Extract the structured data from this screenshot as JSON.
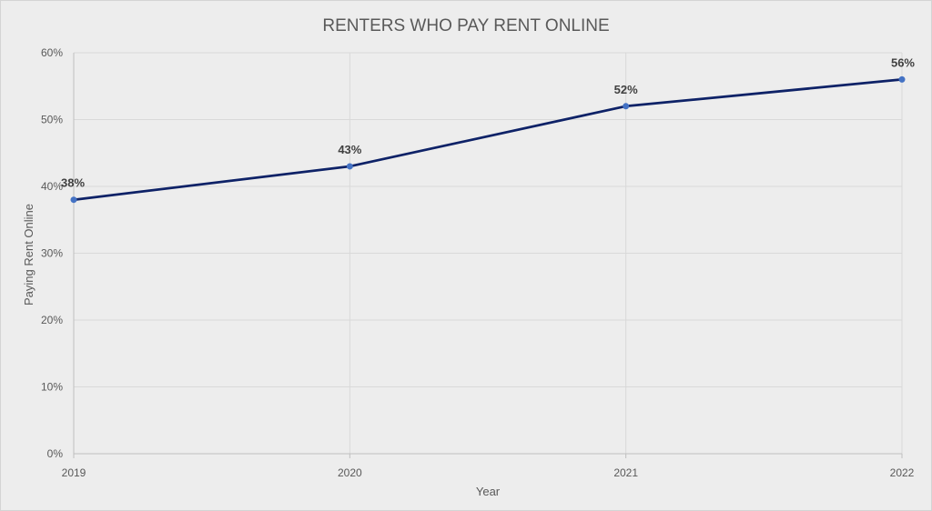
{
  "chart_data": {
    "type": "line",
    "title": "RENTERS WHO PAY RENT ONLINE",
    "xlabel": "Year",
    "ylabel": "Paying Rent Online",
    "categories": [
      "2019",
      "2020",
      "2021",
      "2022"
    ],
    "series": [
      {
        "values": [
          38,
          43,
          52,
          56
        ],
        "data_labels": [
          "38%",
          "43%",
          "52%",
          "56%"
        ]
      }
    ],
    "ylim": [
      0,
      60
    ],
    "y_ticks": [
      0,
      10,
      20,
      30,
      40,
      50,
      60
    ],
    "y_tick_labels": [
      "0%",
      "10%",
      "20%",
      "30%",
      "40%",
      "50%",
      "60%"
    ],
    "grid": true,
    "colors": {
      "line": "#0e2267",
      "marker": "#4472c4"
    }
  }
}
